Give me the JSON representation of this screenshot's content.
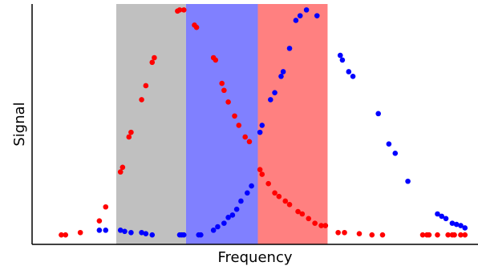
{
  "chart_data": {
    "type": "scatter",
    "title": "",
    "xlabel": "Frequency",
    "ylabel": "Signal",
    "xlim": [
      0,
      100
    ],
    "ylim": [
      0,
      100
    ],
    "grid": false,
    "legend": "none",
    "shaded_bands": [
      {
        "x_start": 16.5,
        "x_end": 33.0,
        "color": "#c0c0c0"
      },
      {
        "x_start": 33.0,
        "x_end": 50.0,
        "color": "#8080ff"
      },
      {
        "x_start": 50.0,
        "x_end": 66.5,
        "color": "#ff8080"
      }
    ],
    "series": [
      {
        "color": "#ff0000",
        "points": [
          [
            3.5,
            2
          ],
          [
            4.5,
            2
          ],
          [
            8,
            3
          ],
          [
            12.5,
            8
          ],
          [
            14,
            14
          ],
          [
            17.5,
            29
          ],
          [
            18,
            31
          ],
          [
            19.5,
            44
          ],
          [
            20,
            46
          ],
          [
            22.5,
            60
          ],
          [
            23.5,
            66
          ],
          [
            25,
            76
          ],
          [
            25.5,
            78
          ],
          [
            31,
            98
          ],
          [
            31.5,
            98.5
          ],
          [
            32.5,
            98.5
          ],
          [
            35,
            92
          ],
          [
            35.5,
            91
          ],
          [
            39.5,
            78
          ],
          [
            40,
            77
          ],
          [
            41.5,
            67
          ],
          [
            42,
            64
          ],
          [
            43,
            59
          ],
          [
            44.5,
            53
          ],
          [
            45.5,
            49
          ],
          [
            47,
            44
          ],
          [
            48,
            42
          ],
          [
            50.5,
            30
          ],
          [
            51,
            28
          ],
          [
            52.5,
            24
          ],
          [
            54,
            20
          ],
          [
            55,
            18.5
          ],
          [
            56.5,
            16.5
          ],
          [
            57.5,
            15
          ],
          [
            59.5,
            12
          ],
          [
            60.5,
            11
          ],
          [
            62,
            9
          ],
          [
            63.5,
            7
          ],
          [
            65,
            6
          ],
          [
            66,
            6
          ],
          [
            69,
            3
          ],
          [
            70.5,
            3
          ],
          [
            74,
            2.5
          ],
          [
            77,
            2
          ],
          [
            79.5,
            2
          ],
          [
            89,
            2
          ],
          [
            90,
            2
          ],
          [
            90.5,
            2
          ],
          [
            92.5,
            2
          ],
          [
            95,
            2
          ],
          [
            96,
            2
          ],
          [
            96.5,
            2
          ],
          [
            98,
            2
          ],
          [
            99,
            2
          ]
        ]
      },
      {
        "color": "#0000ff",
        "points": [
          [
            12.5,
            4
          ],
          [
            14,
            4
          ],
          [
            17.5,
            4
          ],
          [
            18.5,
            3.5
          ],
          [
            20,
            3
          ],
          [
            22.5,
            3
          ],
          [
            23.5,
            2.5
          ],
          [
            25,
            2
          ],
          [
            31.5,
            2
          ],
          [
            32,
            2
          ],
          [
            32.5,
            2
          ],
          [
            36,
            2
          ],
          [
            36.5,
            2
          ],
          [
            39.5,
            4
          ],
          [
            40.5,
            5.5
          ],
          [
            42,
            7
          ],
          [
            43,
            9.5
          ],
          [
            44,
            10.5
          ],
          [
            45,
            13
          ],
          [
            46,
            16.5
          ],
          [
            47.5,
            20
          ],
          [
            48.5,
            23
          ],
          [
            50.5,
            46
          ],
          [
            51,
            49
          ],
          [
            53,
            60
          ],
          [
            54,
            63
          ],
          [
            55.5,
            70
          ],
          [
            56,
            72
          ],
          [
            57.5,
            82
          ],
          [
            59,
            94
          ],
          [
            60,
            96
          ],
          [
            61.5,
            98.5
          ],
          [
            64,
            96
          ],
          [
            69.5,
            79
          ],
          [
            70,
            77
          ],
          [
            71.5,
            72
          ],
          [
            72.5,
            70
          ],
          [
            78.5,
            54
          ],
          [
            81,
            41
          ],
          [
            82.5,
            37
          ],
          [
            85.5,
            25
          ],
          [
            92.5,
            11
          ],
          [
            93.5,
            10
          ],
          [
            94.5,
            9
          ],
          [
            96,
            7
          ],
          [
            97,
            6.5
          ],
          [
            98,
            6
          ],
          [
            99,
            5
          ]
        ]
      }
    ]
  }
}
